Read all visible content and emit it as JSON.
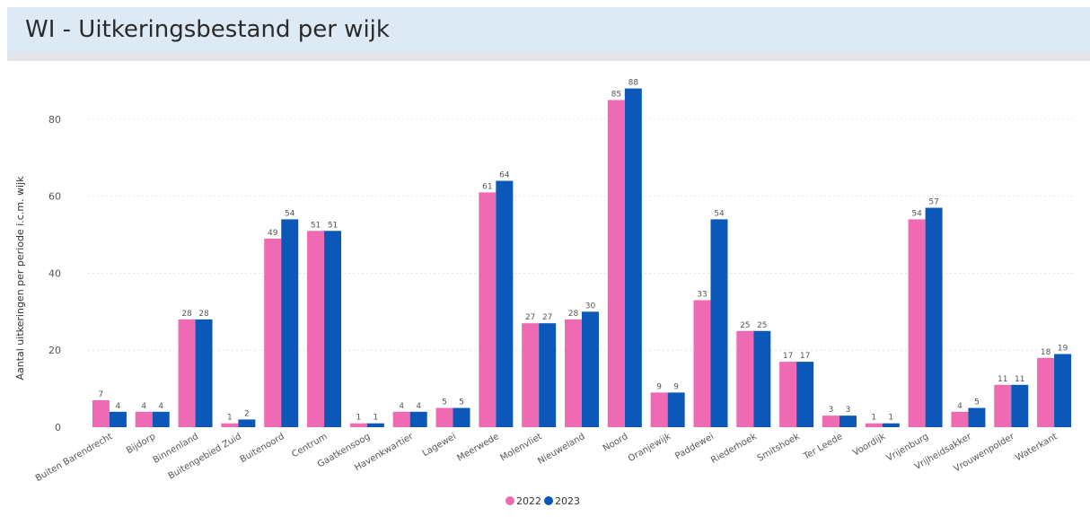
{
  "header": {
    "title": "WI - Uitkeringsbestand per wijk"
  },
  "colors": {
    "s2022": "#ee6bb4",
    "s2023": "#0b58b8",
    "grid": "#e6e6e6",
    "text": "#555555"
  },
  "chart_data": {
    "type": "bar",
    "title": "",
    "xlabel": "",
    "ylabel": "Aantal uitkeringen per periode i.c.m. wijk",
    "ylim": [
      0,
      90
    ],
    "yticks": [
      0,
      20,
      40,
      60,
      80
    ],
    "grid": true,
    "legend_position": "bottom-center",
    "categories": [
      "Buiten Barendrecht",
      "Bijdorp",
      "Binnenland",
      "Buitengebied Zuid",
      "Buitenoord",
      "Centrum",
      "Gaatkensoog",
      "Havenkwartier",
      "Lagewei",
      "Meerwede",
      "Molenvliet",
      "Nieuweland",
      "Noord",
      "Oranjewijk",
      "Paddewei",
      "Riederhoek",
      "Smitshoek",
      "Ter Leede",
      "Voordijk",
      "Vrijenburg",
      "Vrijheidsakker",
      "Vrouwenpolder",
      "Waterkant"
    ],
    "series": [
      {
        "name": "2022",
        "values": [
          7,
          4,
          28,
          1,
          49,
          51,
          1,
          4,
          5,
          61,
          27,
          28,
          85,
          9,
          33,
          25,
          17,
          3,
          1,
          54,
          4,
          11,
          18
        ]
      },
      {
        "name": "2023",
        "values": [
          4,
          4,
          28,
          2,
          54,
          51,
          1,
          4,
          5,
          64,
          27,
          30,
          88,
          9,
          54,
          25,
          17,
          3,
          1,
          57,
          5,
          11,
          19
        ]
      }
    ]
  }
}
